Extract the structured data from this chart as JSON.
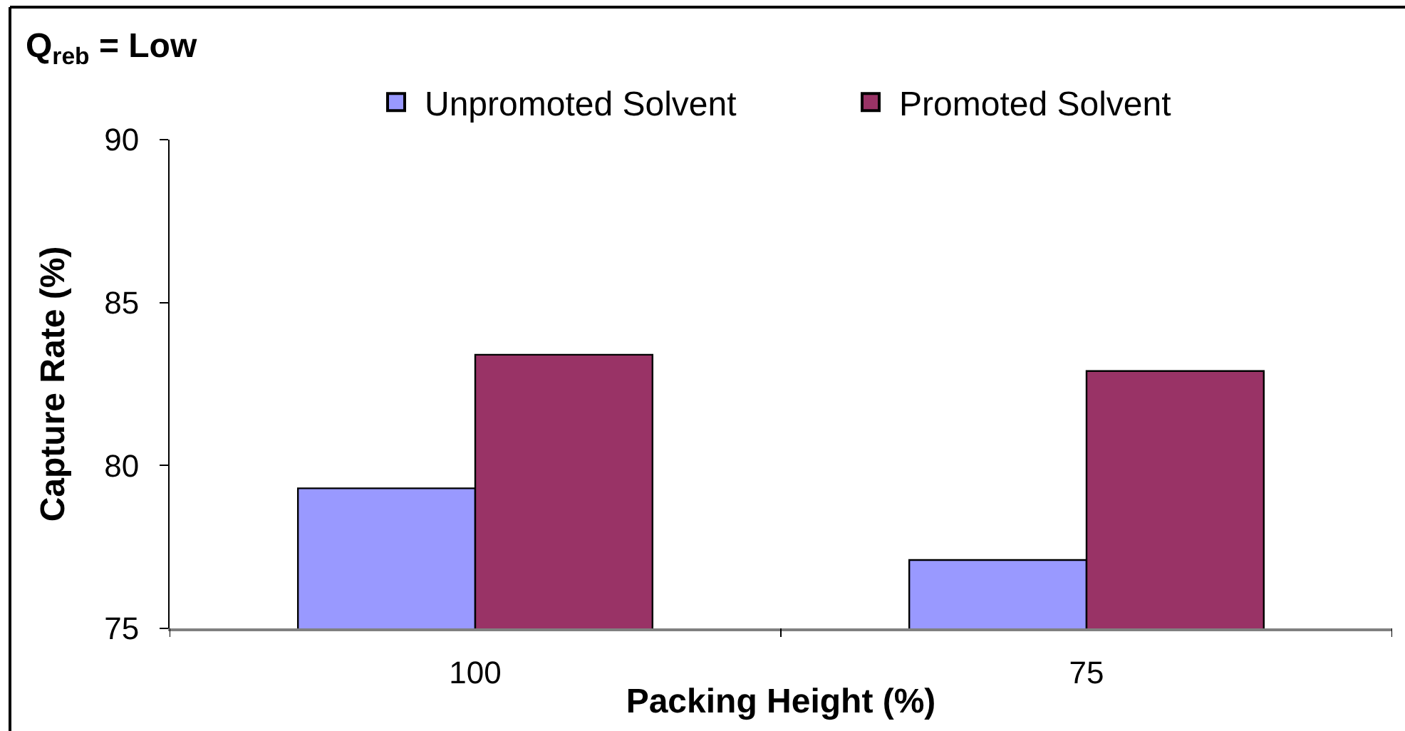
{
  "chart_data": {
    "type": "bar",
    "title": "Q$_{reb}$ = Low",
    "xlabel": "Packing Height (%)",
    "ylabel": "Capture Rate (%)",
    "categories": [
      "100",
      "75"
    ],
    "series": [
      {
        "name": "Unpromoted Solvent",
        "color": "#9999ff",
        "values": [
          79.3,
          77.1
        ]
      },
      {
        "name": "Promoted Solvent",
        "color": "#993366",
        "values": [
          83.4,
          82.9
        ]
      }
    ],
    "ylim": [
      75,
      90
    ],
    "yticks": [
      75,
      80,
      85,
      90
    ],
    "legend": "top"
  }
}
